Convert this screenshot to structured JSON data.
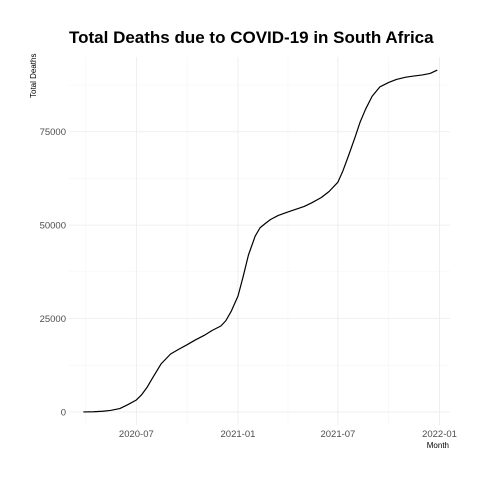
{
  "chart_data": {
    "type": "line",
    "title": "Total Deaths due to COVID-19 in South Africa",
    "xlabel": "Month",
    "ylabel": "Total Deaths",
    "x_ticks": [
      "2020-07",
      "2021-01",
      "2021-07",
      "2022-01"
    ],
    "y_ticks": [
      "0",
      "25000",
      "50000",
      "75000"
    ],
    "xlim": [
      "2020-03-01",
      "2022-01-20"
    ],
    "ylim": [
      -3500,
      95000
    ],
    "grid": true,
    "legend": "none",
    "series": [
      {
        "x": [
          "2020-03-27",
          "2020-04-15",
          "2020-05-01",
          "2020-05-15",
          "2020-06-01",
          "2020-06-15",
          "2020-07-01",
          "2020-07-10",
          "2020-07-20",
          "2020-08-01",
          "2020-08-15",
          "2020-09-01",
          "2020-09-15",
          "2020-10-01",
          "2020-10-15",
          "2020-11-01",
          "2020-11-15",
          "2020-12-01",
          "2020-12-10",
          "2020-12-20",
          "2021-01-01",
          "2021-01-10",
          "2021-01-20",
          "2021-02-01",
          "2021-02-10",
          "2021-02-20",
          "2021-03-01",
          "2021-03-15",
          "2021-04-01",
          "2021-04-15",
          "2021-05-01",
          "2021-05-15",
          "2021-06-01",
          "2021-06-15",
          "2021-07-01",
          "2021-07-10",
          "2021-07-20",
          "2021-08-01",
          "2021-08-10",
          "2021-08-20",
          "2021-09-01",
          "2021-09-15",
          "2021-10-01",
          "2021-10-15",
          "2021-11-01",
          "2021-11-15",
          "2021-12-01",
          "2021-12-15",
          "2021-12-28"
        ],
        "values": [
          0,
          50,
          180,
          400,
          900,
          1900,
          3200,
          4500,
          6500,
          9500,
          12900,
          15500,
          16700,
          18000,
          19200,
          20500,
          21800,
          23000,
          24400,
          27000,
          31000,
          36000,
          42000,
          47000,
          49300,
          50500,
          51500,
          52600,
          53500,
          54200,
          55000,
          56000,
          57400,
          59000,
          61500,
          64500,
          68500,
          73500,
          77500,
          81000,
          84500,
          87000,
          88200,
          89000,
          89600,
          89900,
          90200,
          90600,
          91500
        ]
      }
    ]
  }
}
